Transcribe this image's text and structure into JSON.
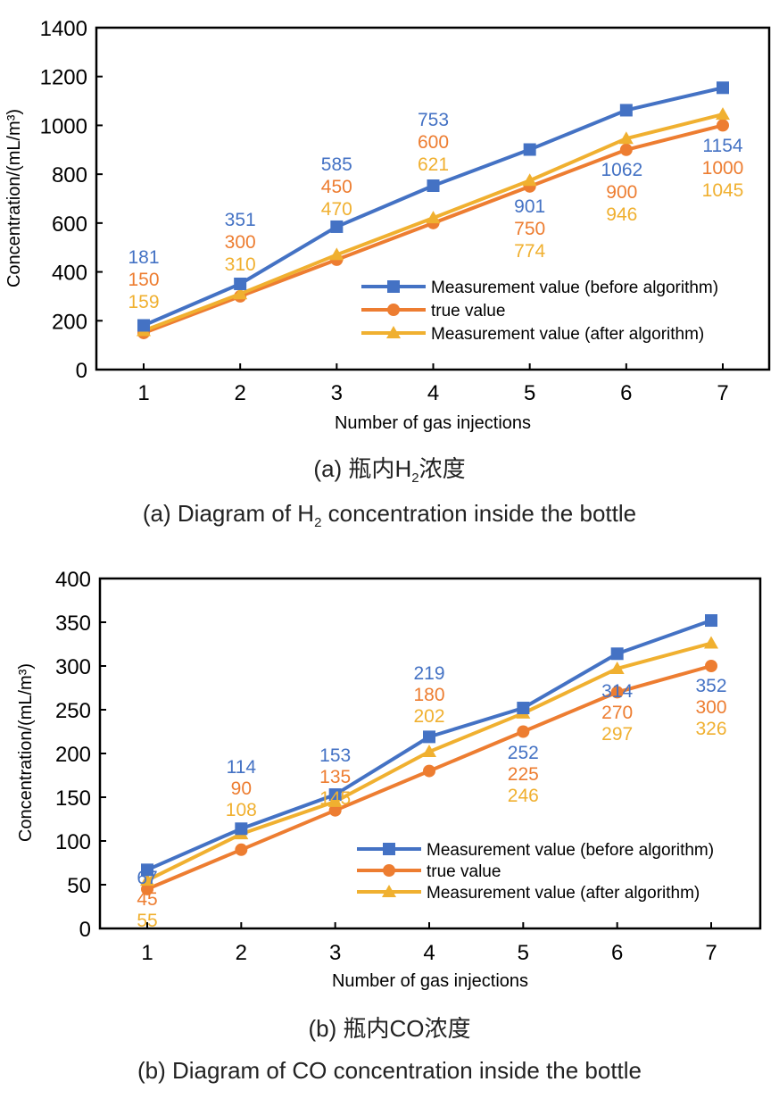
{
  "figures": [
    {
      "caption_cn_prefix": "(a) 瓶内",
      "caption_cn_species": "H",
      "caption_cn_subscript": "2",
      "caption_cn_suffix": "浓度",
      "caption_en_prefix": "(a) Diagram of ",
      "caption_en_species": "H",
      "caption_en_subscript": "2",
      "caption_en_suffix": " concentration inside the bottle"
    },
    {
      "caption_cn_prefix": "(b) 瓶内",
      "caption_cn_species": "CO",
      "caption_cn_subscript": "",
      "caption_cn_suffix": "浓度",
      "caption_en_prefix": "(b) Diagram of ",
      "caption_en_species": "CO",
      "caption_en_subscript": "",
      "caption_en_suffix": " concentration inside the bottle"
    }
  ],
  "chart_data": [
    {
      "type": "line",
      "title": "(a) Diagram of H2 concentration inside the bottle",
      "xlabel": "Number of gas injections",
      "ylabel": "Concentration/(mL/m³)",
      "x": [
        1,
        2,
        3,
        4,
        5,
        6,
        7
      ],
      "xticks": [
        "1",
        "2",
        "3",
        "4",
        "5",
        "6",
        "7"
      ],
      "ylim": [
        0,
        1400
      ],
      "yticks": [
        0,
        200,
        400,
        600,
        800,
        1000,
        1200,
        1400
      ],
      "grid": false,
      "legend_position": "bottom-right",
      "series": [
        {
          "name": "Measurement value (before algorithm)",
          "marker": "square",
          "color": "#4472C4",
          "values": [
            181,
            351,
            585,
            753,
            901,
            1062,
            1154
          ]
        },
        {
          "name": "true value",
          "marker": "circle",
          "color": "#ED7D31",
          "values": [
            150,
            300,
            450,
            600,
            750,
            900,
            1000
          ]
        },
        {
          "name": "Measurement value (after algorithm)",
          "marker": "triangle",
          "color": "#F0B030",
          "values": [
            159,
            310,
            470,
            621,
            774,
            946,
            1045
          ]
        }
      ],
      "label_placement": [
        "above",
        "above",
        "above",
        "above",
        "below",
        "below",
        "below"
      ]
    },
    {
      "type": "line",
      "title": "(b) Diagram of CO concentration inside the bottle",
      "xlabel": "Number of gas injections",
      "ylabel": "Concentration/(mL/m³)",
      "x": [
        1,
        2,
        3,
        4,
        5,
        6,
        7
      ],
      "xticks": [
        "1",
        "2",
        "3",
        "4",
        "5",
        "6",
        "7"
      ],
      "ylim": [
        0,
        400
      ],
      "yticks": [
        0,
        50,
        100,
        150,
        200,
        250,
        300,
        350,
        400
      ],
      "grid": false,
      "legend_position": "bottom-right",
      "series": [
        {
          "name": "Measurement value (before algorithm)",
          "marker": "square",
          "color": "#4472C4",
          "values": [
            67,
            114,
            153,
            219,
            252,
            314,
            352
          ]
        },
        {
          "name": "true value",
          "marker": "circle",
          "color": "#ED7D31",
          "values": [
            45,
            90,
            135,
            180,
            225,
            270,
            300
          ]
        },
        {
          "name": "Measurement value (after algorithm)",
          "marker": "triangle",
          "color": "#F0B030",
          "values": [
            55,
            108,
            145,
            202,
            246,
            297,
            326
          ]
        }
      ],
      "label_placement": [
        "above",
        "above",
        "above",
        "above",
        "below",
        "below",
        "below"
      ]
    }
  ]
}
